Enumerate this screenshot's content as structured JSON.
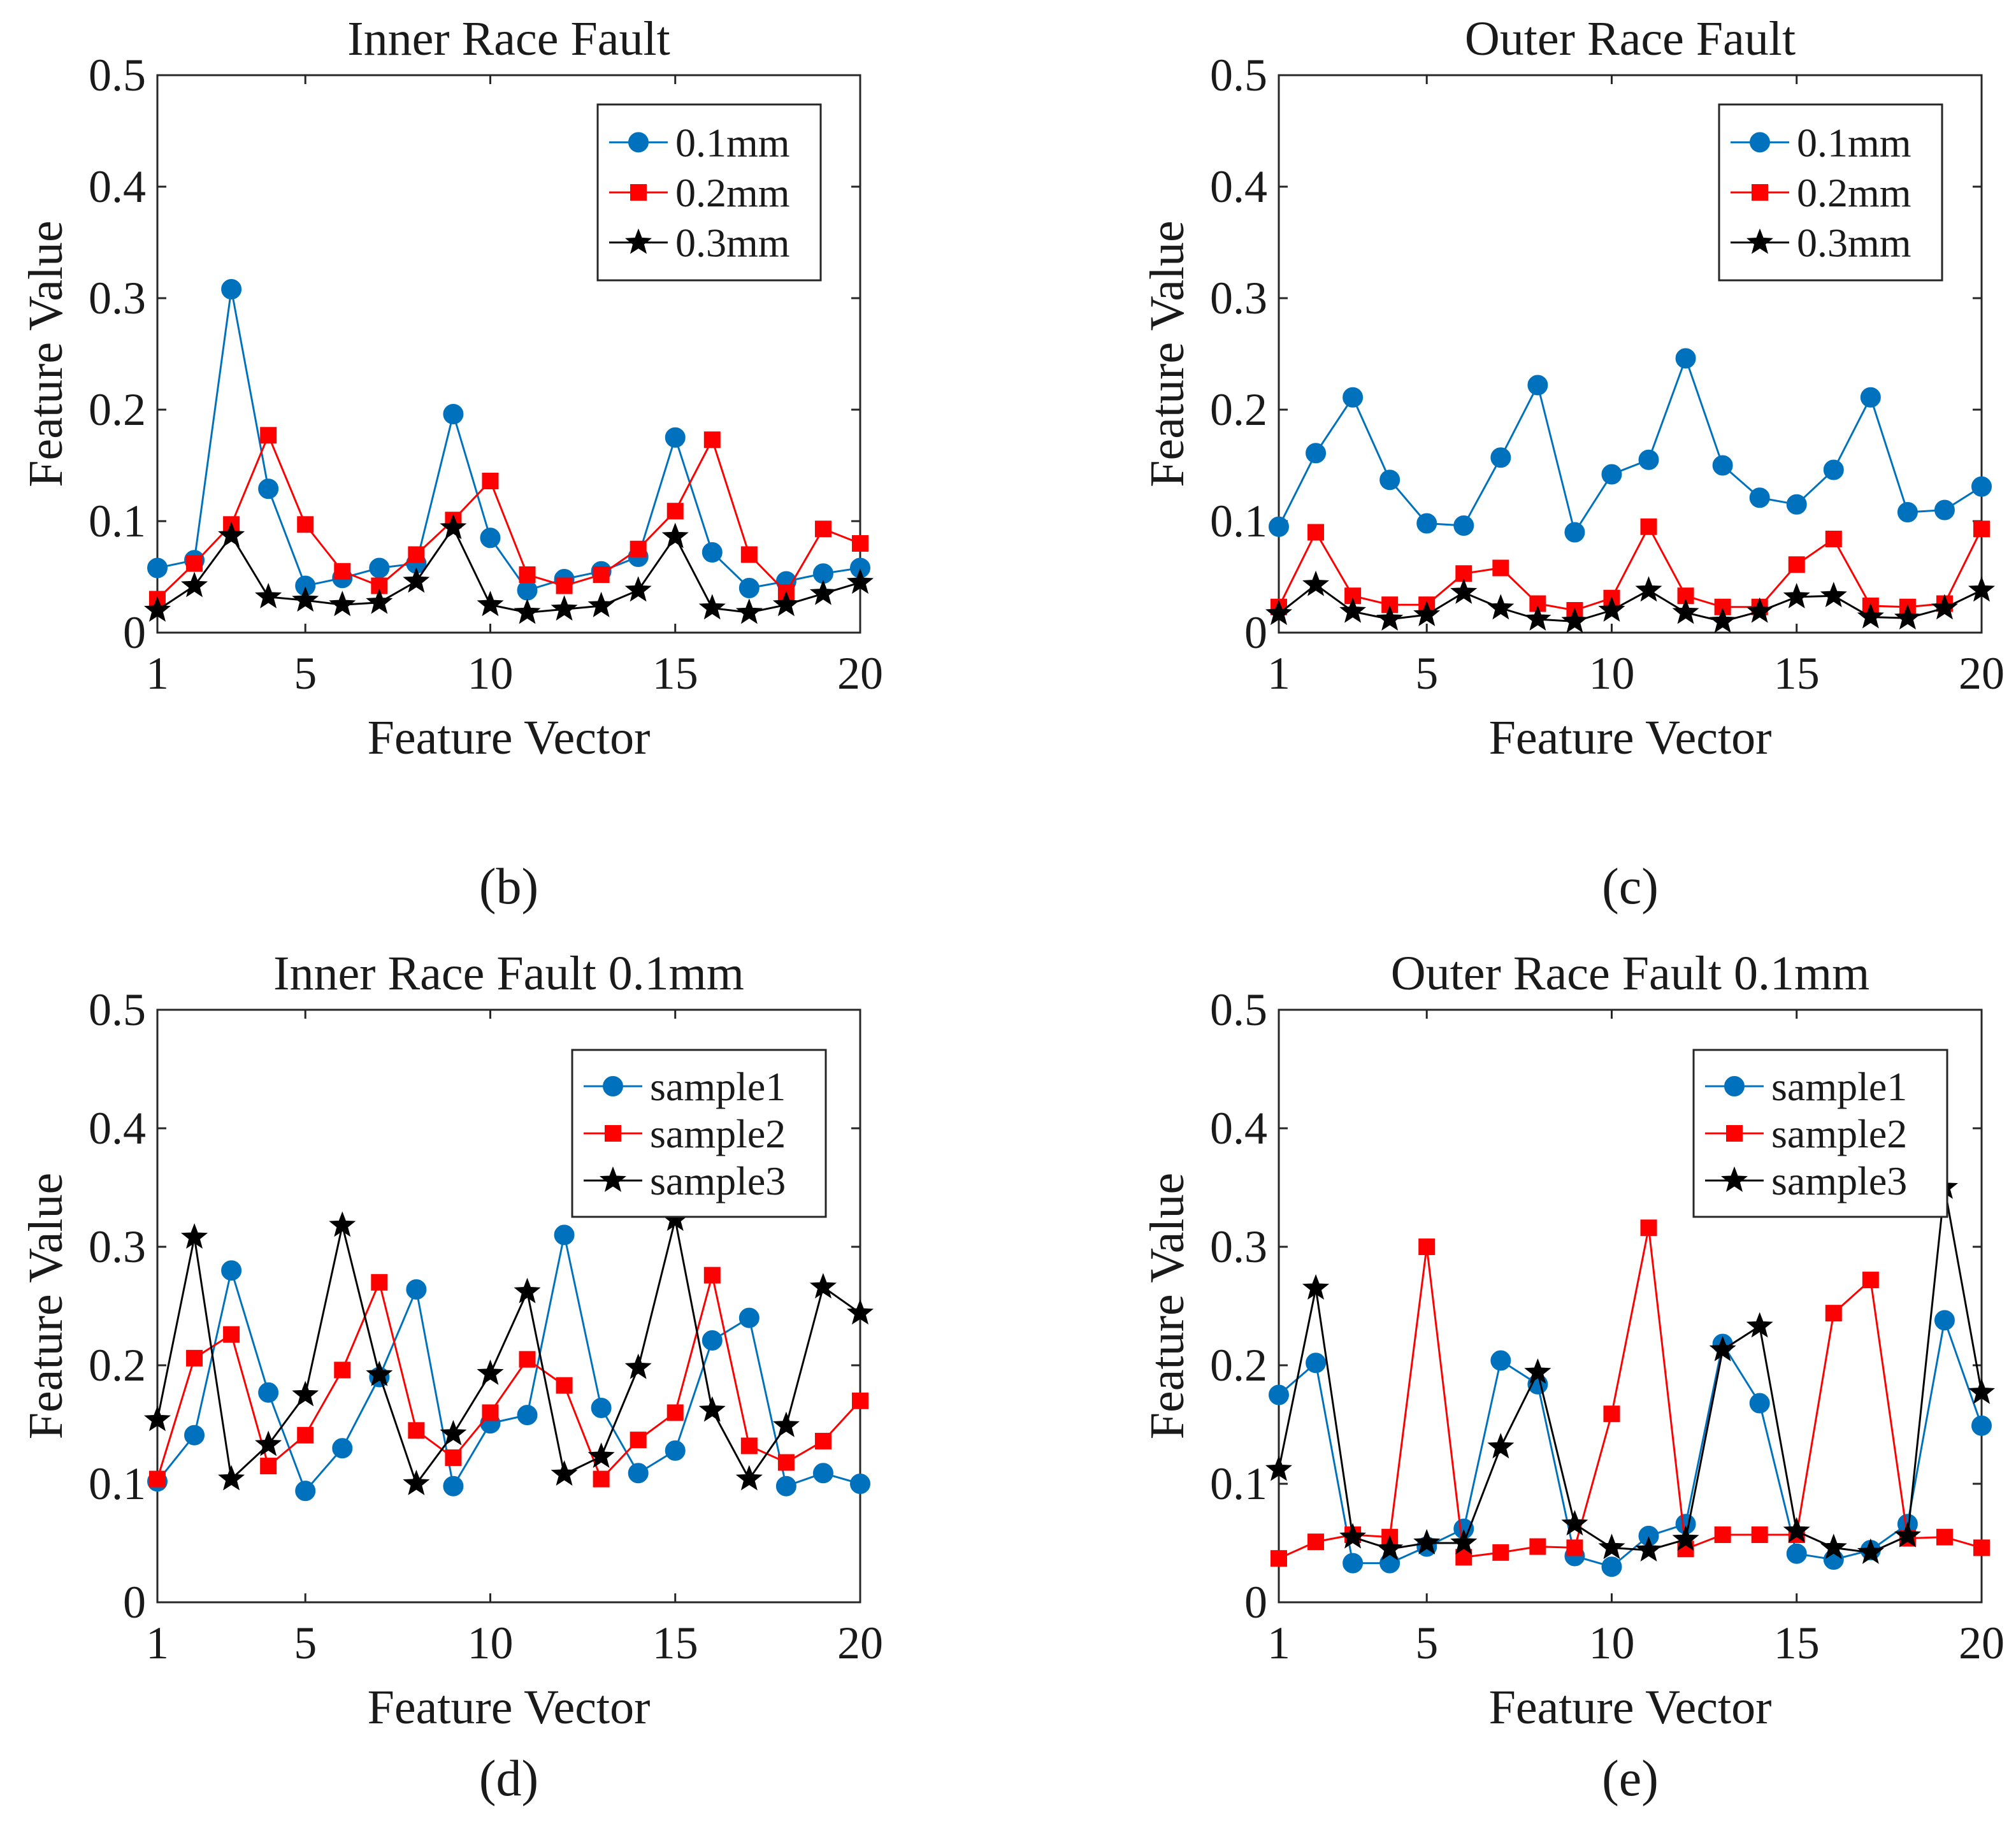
{
  "chart_data": [
    {
      "type": "line",
      "panel_label": "(b)",
      "title": "Inner Race Fault",
      "xlabel": "Feature Vector",
      "ylabel": "Feature Value",
      "xlim": [
        1,
        20
      ],
      "ylim": [
        0,
        0.5
      ],
      "xticks": [
        1,
        5,
        10,
        15,
        20
      ],
      "yticks": [
        0,
        0.1,
        0.2,
        0.3,
        0.4,
        0.5
      ],
      "legend_position": "top-right",
      "x": [
        1,
        2,
        3,
        4,
        5,
        6,
        7,
        8,
        9,
        10,
        11,
        12,
        13,
        14,
        15,
        16,
        17,
        18,
        19,
        20
      ],
      "series": [
        {
          "name": "0.1mm",
          "color": "#0072BD",
          "marker": "circle",
          "values": [
            0.058,
            0.065,
            0.308,
            0.129,
            0.042,
            0.049,
            0.058,
            0.062,
            0.196,
            0.085,
            0.038,
            0.048,
            0.055,
            0.068,
            0.175,
            0.072,
            0.04,
            0.046,
            0.053,
            0.058
          ]
        },
        {
          "name": "0.2mm",
          "color": "#FF0000",
          "marker": "square",
          "values": [
            0.03,
            0.062,
            0.097,
            0.177,
            0.097,
            0.055,
            0.042,
            0.07,
            0.101,
            0.136,
            0.052,
            0.042,
            0.052,
            0.075,
            0.109,
            0.173,
            0.07,
            0.036,
            0.093,
            0.08
          ]
        },
        {
          "name": "0.3mm",
          "color": "#000000",
          "marker": "star",
          "values": [
            0.02,
            0.042,
            0.087,
            0.032,
            0.029,
            0.025,
            0.027,
            0.046,
            0.094,
            0.025,
            0.018,
            0.021,
            0.024,
            0.038,
            0.086,
            0.022,
            0.018,
            0.025,
            0.035,
            0.045
          ]
        }
      ]
    },
    {
      "type": "line",
      "panel_label": "(c)",
      "title": "Outer Race Fault",
      "xlabel": "Feature Vector",
      "ylabel": "Feature Value",
      "xlim": [
        1,
        20
      ],
      "ylim": [
        0,
        0.5
      ],
      "xticks": [
        1,
        5,
        10,
        15,
        20
      ],
      "yticks": [
        0,
        0.1,
        0.2,
        0.3,
        0.4,
        0.5
      ],
      "legend_position": "top-right",
      "x": [
        1,
        2,
        3,
        4,
        5,
        6,
        7,
        8,
        9,
        10,
        11,
        12,
        13,
        14,
        15,
        16,
        17,
        18,
        19,
        20
      ],
      "series": [
        {
          "name": "0.1mm",
          "color": "#0072BD",
          "marker": "circle",
          "values": [
            0.095,
            0.161,
            0.211,
            0.137,
            0.098,
            0.096,
            0.157,
            0.222,
            0.09,
            0.142,
            0.155,
            0.246,
            0.15,
            0.121,
            0.115,
            0.146,
            0.211,
            0.108,
            0.11,
            0.131
          ]
        },
        {
          "name": "0.2mm",
          "color": "#FF0000",
          "marker": "square",
          "values": [
            0.023,
            0.09,
            0.033,
            0.025,
            0.025,
            0.053,
            0.058,
            0.026,
            0.02,
            0.031,
            0.095,
            0.033,
            0.023,
            0.023,
            0.061,
            0.084,
            0.024,
            0.023,
            0.026,
            0.093
          ]
        },
        {
          "name": "0.3mm",
          "color": "#000000",
          "marker": "star",
          "values": [
            0.017,
            0.043,
            0.019,
            0.012,
            0.016,
            0.036,
            0.022,
            0.012,
            0.01,
            0.02,
            0.038,
            0.018,
            0.01,
            0.019,
            0.032,
            0.033,
            0.014,
            0.013,
            0.022,
            0.038
          ]
        }
      ]
    },
    {
      "type": "line",
      "panel_label": "(d)",
      "title": "Inner Race Fault 0.1mm",
      "xlabel": "Feature Vector",
      "ylabel": "Feature Value",
      "xlim": [
        1,
        20
      ],
      "ylim": [
        0,
        0.5
      ],
      "xticks": [
        1,
        5,
        10,
        15,
        20
      ],
      "yticks": [
        0,
        0.1,
        0.2,
        0.3,
        0.4,
        0.5
      ],
      "legend_position": "top-right",
      "x": [
        1,
        2,
        3,
        4,
        5,
        6,
        7,
        8,
        9,
        10,
        11,
        12,
        13,
        14,
        15,
        16,
        17,
        18,
        19,
        20
      ],
      "series": [
        {
          "name": "sample1",
          "color": "#0072BD",
          "marker": "circle",
          "values": [
            0.102,
            0.141,
            0.28,
            0.177,
            0.094,
            0.13,
            0.19,
            0.264,
            0.098,
            0.151,
            0.158,
            0.31,
            0.164,
            0.109,
            0.128,
            0.221,
            0.24,
            0.098,
            0.109,
            0.1
          ]
        },
        {
          "name": "sample2",
          "color": "#FF0000",
          "marker": "square",
          "values": [
            0.104,
            0.206,
            0.226,
            0.115,
            0.141,
            0.196,
            0.27,
            0.145,
            0.122,
            0.16,
            0.205,
            0.183,
            0.104,
            0.137,
            0.16,
            0.276,
            0.132,
            0.118,
            0.136,
            0.17
          ]
        },
        {
          "name": "sample3",
          "color": "#000000",
          "marker": "star",
          "values": [
            0.154,
            0.308,
            0.104,
            0.133,
            0.175,
            0.318,
            0.192,
            0.1,
            0.142,
            0.193,
            0.262,
            0.108,
            0.123,
            0.198,
            0.323,
            0.162,
            0.104,
            0.149,
            0.266,
            0.244
          ]
        }
      ]
    },
    {
      "type": "line",
      "panel_label": "(e)",
      "title": "Outer Race Fault 0.1mm",
      "xlabel": "Feature Vector",
      "ylabel": "Feature Value",
      "xlim": [
        1,
        20
      ],
      "ylim": [
        0,
        0.5
      ],
      "xticks": [
        1,
        5,
        10,
        15,
        20
      ],
      "yticks": [
        0,
        0.1,
        0.2,
        0.3,
        0.4,
        0.5
      ],
      "legend_position": "top-right",
      "x": [
        1,
        2,
        3,
        4,
        5,
        6,
        7,
        8,
        9,
        10,
        11,
        12,
        13,
        14,
        15,
        16,
        17,
        18,
        19,
        20
      ],
      "series": [
        {
          "name": "sample1",
          "color": "#0072BD",
          "marker": "circle",
          "values": [
            0.175,
            0.202,
            0.033,
            0.033,
            0.047,
            0.062,
            0.204,
            0.184,
            0.039,
            0.03,
            0.056,
            0.066,
            0.218,
            0.168,
            0.041,
            0.036,
            0.044,
            0.066,
            0.238,
            0.149
          ]
        },
        {
          "name": "sample2",
          "color": "#FF0000",
          "marker": "square",
          "values": [
            0.037,
            0.051,
            0.057,
            0.055,
            0.3,
            0.038,
            0.042,
            0.047,
            0.046,
            0.159,
            0.316,
            0.045,
            0.057,
            0.057,
            0.057,
            0.244,
            0.272,
            0.054,
            0.055,
            0.046
          ]
        },
        {
          "name": "sample3",
          "color": "#000000",
          "marker": "star",
          "values": [
            0.112,
            0.265,
            0.055,
            0.045,
            0.05,
            0.05,
            0.131,
            0.194,
            0.066,
            0.046,
            0.044,
            0.053,
            0.213,
            0.233,
            0.06,
            0.046,
            0.042,
            0.056,
            0.35,
            0.177
          ]
        }
      ]
    }
  ]
}
